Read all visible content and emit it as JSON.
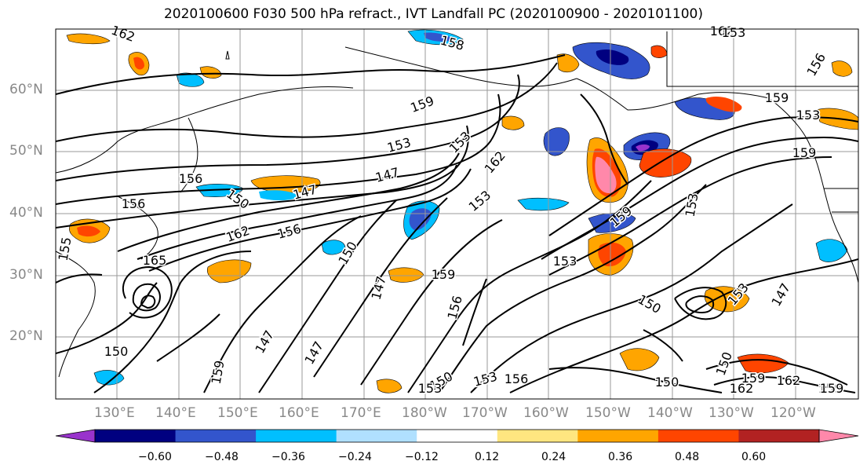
{
  "title": "2020100600 F030 500 hPa refract., IVT Landfall PC (2020100900 - 2020101100)",
  "lat_labels": [
    "60°N",
    "50°N",
    "40°N",
    "30°N",
    "20°N"
  ],
  "lon_labels": [
    "130°E",
    "140°E",
    "150°E",
    "160°E",
    "170°E",
    "180°W",
    "170°W",
    "160°W",
    "150°W",
    "140°W",
    "130°W",
    "120°W"
  ],
  "colorbar": {
    "ticks": [
      "−0.60",
      "−0.48",
      "−0.36",
      "−0.24",
      "−0.12",
      "0.12",
      "0.24",
      "0.36",
      "0.48",
      "0.60"
    ],
    "colors": [
      "#9933cc",
      "#000080",
      "#3355cc",
      "#00bfff",
      "#b0e0ff",
      "#ffffff",
      "#ffe680",
      "#ffa500",
      "#ff4500",
      "#b22222",
      "#ff88aa"
    ]
  },
  "contour_labels": [
    "162",
    "158",
    "162",
    "159",
    "159",
    "153",
    "153",
    "153",
    "162",
    "156",
    "150",
    "156",
    "147",
    "147",
    "153",
    "162",
    "156",
    "150",
    "153",
    "159",
    "165",
    "147",
    "159",
    "156",
    "153",
    "150",
    "147",
    "147",
    "150",
    "159",
    "153",
    "156",
    "150",
    "153",
    "159",
    "162",
    "159",
    "147",
    "150",
    "153",
    "155",
    "159",
    "156",
    "150",
    "153",
    "162",
    "159"
  ]
}
